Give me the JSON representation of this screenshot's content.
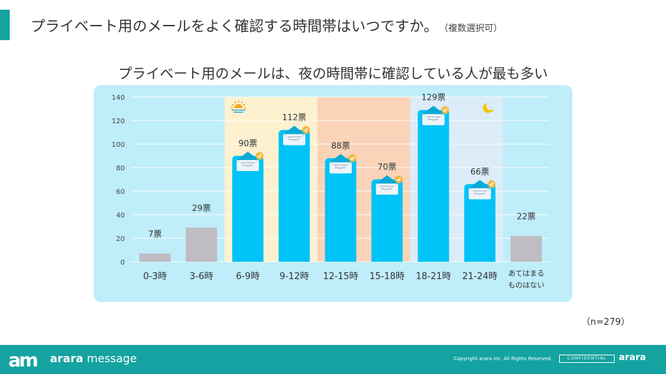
{
  "slide": {
    "title": "プライベート用のメールをよく確認する時間帯はいつですか。",
    "title_note": "（複数選択可）",
    "headline": "プライベート用のメールは、夜の時間帯に確認している人が最も多い",
    "sample_size": "（n=279）"
  },
  "chart_data": {
    "type": "bar",
    "title": "プライベート用のメールは、夜の時間帯に確認している人が最も多い",
    "categories": [
      "0-3時",
      "3-6時",
      "6-9時",
      "9-12時",
      "12-15時",
      "15-18時",
      "18-21時",
      "21-24時",
      "あてはまるものはない"
    ],
    "category_lines": [
      [
        "0-3時"
      ],
      [
        "3-6時"
      ],
      [
        "6-9時"
      ],
      [
        "9-12時"
      ],
      [
        "12-15時"
      ],
      [
        "15-18時"
      ],
      [
        "18-21時"
      ],
      [
        "21-24時"
      ],
      [
        "あてはまる",
        "ものはない"
      ]
    ],
    "values": [
      7,
      29,
      90,
      112,
      88,
      70,
      129,
      66,
      22
    ],
    "value_labels": [
      "7票",
      "29票",
      "90票",
      "112票",
      "88票",
      "70票",
      "129票",
      "66票",
      "22票"
    ],
    "highlight": [
      false,
      false,
      true,
      true,
      true,
      true,
      true,
      true,
      false
    ],
    "ylim": [
      0,
      140
    ],
    "yticks": [
      0,
      20,
      40,
      60,
      80,
      100,
      120,
      140
    ],
    "xlabel": "",
    "ylabel": "",
    "grid": true,
    "colors": {
      "highlight_bar": "#00c3f7",
      "muted_bar": "#bfbcc3",
      "plot_bg": "#bfedfa",
      "morning_band": "#fdf1cf",
      "midday_band": "#fbd3b8",
      "evening_band": "#dcecf8",
      "envelope": "#eef4f8",
      "check": "#f6b73c"
    },
    "bands": [
      {
        "name": "morning",
        "from_index": 2,
        "to_index": 3,
        "icon": "sunrise-icon"
      },
      {
        "name": "midday",
        "from_index": 4,
        "to_index": 5,
        "icon": ""
      },
      {
        "name": "evening",
        "from_index": 6,
        "to_index": 7,
        "icon": "moon-icon"
      }
    ]
  },
  "footer": {
    "logo_mark": "am",
    "logo_brand": "arara",
    "logo_product": " message",
    "copyright": "Copyright arara inc. All Rights Reserved.",
    "confidential": "CONFIDENTIAL",
    "brand_right": "arara"
  }
}
